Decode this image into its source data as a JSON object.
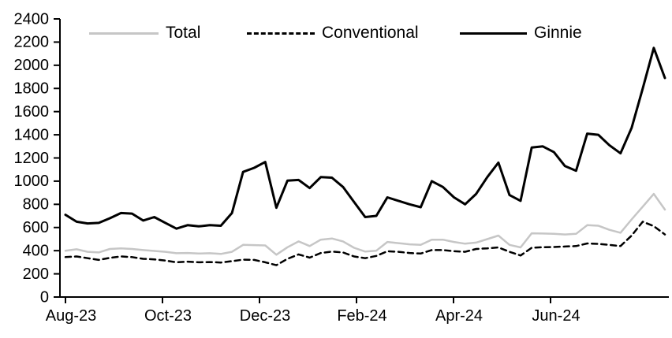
{
  "chart_data": {
    "type": "line",
    "title": "",
    "xlabel": "",
    "ylabel": "",
    "ylim": [
      0,
      2400
    ],
    "y_tick_step": 200,
    "y_ticks": [
      0,
      200,
      400,
      600,
      800,
      1000,
      1200,
      1400,
      1600,
      1800,
      2000,
      2200,
      2400
    ],
    "x_tick_labels": [
      "Aug-23",
      "Oct-23",
      "Dec-23",
      "Feb-24",
      "Apr-24",
      "Jun-24"
    ],
    "grid": false,
    "legend_position": "top",
    "frequency": "weekly",
    "series": [
      {
        "name": "Total",
        "color": "#c6c6c6",
        "style": "solid",
        "width": 2.5,
        "values": [
          400,
          412,
          390,
          385,
          415,
          420,
          415,
          405,
          398,
          390,
          378,
          380,
          375,
          378,
          372,
          390,
          450,
          448,
          445,
          365,
          430,
          480,
          440,
          495,
          505,
          480,
          425,
          392,
          400,
          475,
          465,
          455,
          450,
          495,
          495,
          475,
          460,
          470,
          500,
          530,
          450,
          428,
          550,
          548,
          545,
          540,
          545,
          620,
          615,
          580,
          555,
          670,
          780,
          890,
          755
        ]
      },
      {
        "name": "Conventional",
        "color": "#000000",
        "style": "dashed",
        "width": 2.5,
        "values": [
          345,
          350,
          335,
          320,
          338,
          350,
          345,
          330,
          325,
          315,
          300,
          305,
          300,
          302,
          298,
          310,
          322,
          320,
          300,
          275,
          330,
          368,
          340,
          380,
          392,
          385,
          350,
          335,
          355,
          395,
          390,
          380,
          375,
          405,
          405,
          395,
          390,
          415,
          420,
          428,
          390,
          358,
          425,
          430,
          432,
          436,
          440,
          462,
          458,
          450,
          440,
          530,
          650,
          612,
          540
        ]
      },
      {
        "name": "Ginnie",
        "color": "#000000",
        "style": "solid",
        "width": 3,
        "values": [
          710,
          650,
          635,
          640,
          680,
          725,
          720,
          660,
          690,
          640,
          590,
          620,
          610,
          620,
          615,
          725,
          1080,
          1115,
          1165,
          770,
          1005,
          1010,
          940,
          1035,
          1030,
          950,
          820,
          690,
          700,
          860,
          830,
          800,
          775,
          1000,
          950,
          860,
          800,
          890,
          1035,
          1160,
          880,
          830,
          1290,
          1300,
          1250,
          1130,
          1090,
          1410,
          1400,
          1310,
          1240,
          1460,
          1800,
          2150,
          1890
        ]
      }
    ]
  },
  "axis": {
    "color": "#000000",
    "tick_font_size": 20
  }
}
